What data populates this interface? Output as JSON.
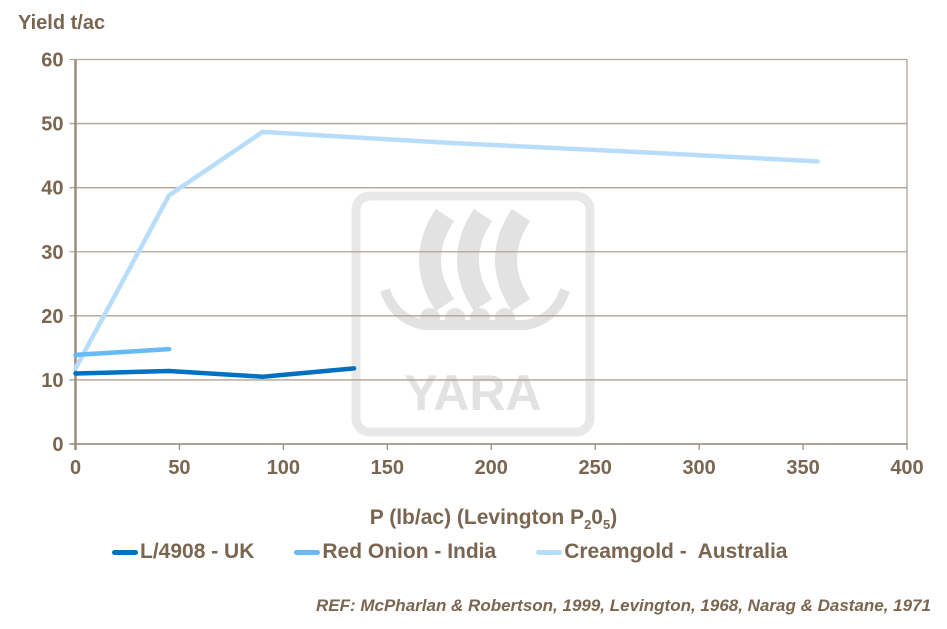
{
  "chart_data": {
    "type": "line",
    "ylabel": "Yield t/ac",
    "xlabel_main": "P (lb/ac) (Levington P",
    "xlabel_sub1": "2",
    "xlabel_mid": "0",
    "xlabel_sub2": "5",
    "xlabel_end": ")",
    "xlim": [
      0,
      400
    ],
    "ylim": [
      0,
      60
    ],
    "xticks": [
      0,
      50,
      100,
      150,
      200,
      250,
      300,
      350,
      400
    ],
    "yticks": [
      0,
      10,
      20,
      30,
      40,
      50,
      60
    ],
    "grid": "horizontal",
    "legend_position": "bottom",
    "series": [
      {
        "name": "L/4908 - UK",
        "color": "#0070c0",
        "x": [
          0,
          45,
          90,
          134
        ],
        "y": [
          11.0,
          11.4,
          10.5,
          11.8
        ]
      },
      {
        "name": "Red Onion - India",
        "color": "#66bbf7",
        "x": [
          0,
          45
        ],
        "y": [
          13.9,
          14.8
        ]
      },
      {
        "name": "Creamgold -  Australia",
        "color": "#b8ddfb",
        "x": [
          0,
          45,
          90,
          179,
          268,
          357
        ],
        "y": [
          11.8,
          38.8,
          48.7,
          47.0,
          45.6,
          44.1
        ]
      }
    ],
    "annotation": "REF: McPharlan & Robertson, 1999, Levington, 1968, Narag & Dastane, 1971",
    "watermark": "YARA"
  }
}
